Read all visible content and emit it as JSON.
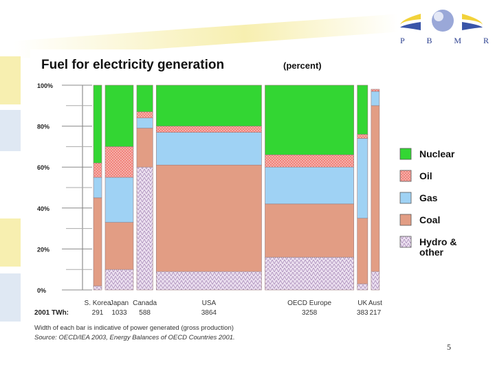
{
  "slide": {
    "page_number": "5",
    "logo": {
      "letters": [
        "P",
        "B",
        "M",
        "R"
      ],
      "colors": {
        "arc_yellow": "#f2d23a",
        "arc_blue": "#3a55a8",
        "sphere": "#9aa8d8"
      }
    }
  },
  "chart_data": {
    "type": "bar",
    "subtype": "stacked-variable-width-100-percent",
    "title": "Fuel for electricity generation",
    "title_suffix": "(percent)",
    "ylim": [
      0,
      100
    ],
    "yticks": [
      "0%",
      "20%",
      "40%",
      "60%",
      "80%",
      "100%"
    ],
    "ytick_values": [
      0,
      20,
      40,
      60,
      80,
      100
    ],
    "twh_label": "2001 TWh:",
    "categories": [
      "S. Korea",
      "Japan",
      "Canada",
      "USA",
      "OECD Europe",
      "UK",
      "Aust"
    ],
    "twh": [
      "291",
      "1033",
      "588",
      "3864",
      "3258",
      "383",
      "217"
    ],
    "series": [
      {
        "name": "Hydro & other",
        "legend_lines": [
          "Hydro &",
          "other"
        ],
        "color": "#e8d8ec",
        "pattern": true,
        "values": [
          2,
          10,
          60,
          9,
          16,
          3,
          9
        ]
      },
      {
        "name": "Coal",
        "legend_lines": [
          "Coal"
        ],
        "color": "#e29d84",
        "pattern": false,
        "values": [
          43,
          23,
          19,
          52,
          26,
          32,
          81
        ]
      },
      {
        "name": "Gas",
        "legend_lines": [
          "Gas"
        ],
        "color": "#9fd2f4",
        "pattern": false,
        "values": [
          10,
          22,
          5,
          16,
          18,
          39,
          7
        ]
      },
      {
        "name": "Oil",
        "legend_lines": [
          "Oil"
        ],
        "color": "#f07a72",
        "pattern": true,
        "values": [
          7,
          15,
          3,
          3,
          6,
          2,
          1
        ]
      },
      {
        "name": "Nuclear",
        "legend_lines": [
          "Nuclear"
        ],
        "color": "#33d633",
        "pattern": false,
        "values": [
          38,
          30,
          13,
          20,
          34,
          24,
          0
        ]
      }
    ],
    "legend_order": [
      "Nuclear",
      "Oil",
      "Gas",
      "Coal",
      "Hydro & other"
    ],
    "legend_position": "right",
    "footnote": "Width of each bar is indicative of power generated (gross production)",
    "source": "Source: OECD/IEA 2003, Energy Balances of OECD Countries 2001."
  }
}
